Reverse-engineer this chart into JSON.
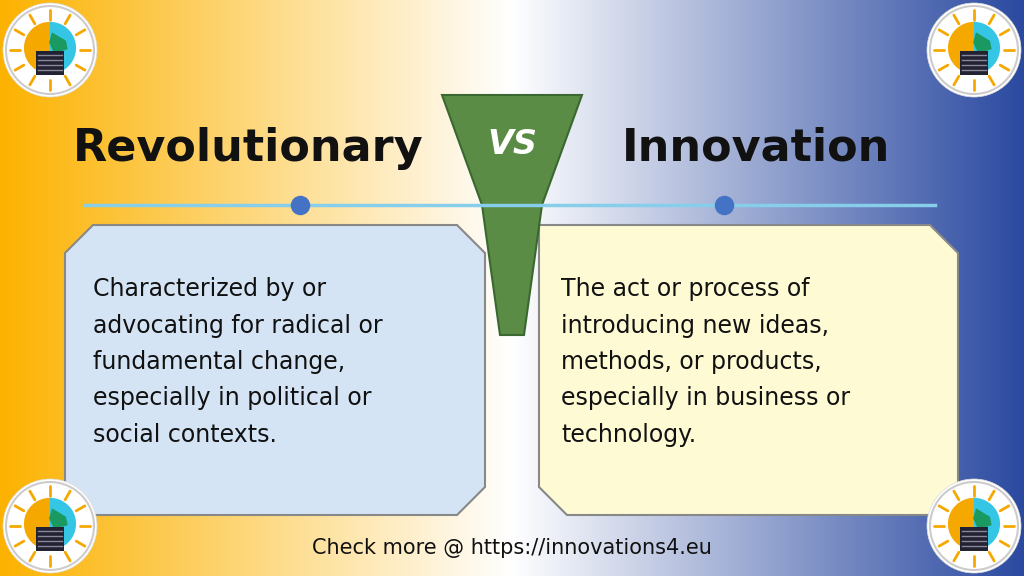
{
  "title_left": "Revolutionary",
  "title_right": "Innovation",
  "vs_text": "VS",
  "desc_left": "Characterized by or\nadvocating for radical or\nfundamental change,\nespecially in political or\nsocial contexts.",
  "desc_right": "The act or process of\nintroducing new ideas,\nmethods, or products,\nespecially in business or\ntechnology.",
  "footer": "Check more @ https://innovations4.eu",
  "bg_yellow": [
    0.988,
    0.698,
    0.0
  ],
  "bg_blue": [
    0.165,
    0.286,
    0.627
  ],
  "bg_white": [
    1.0,
    1.0,
    1.0
  ],
  "box_left_color": "#D4E4F5",
  "box_right_color": "#FEFAD4",
  "box_left_border": "#888888",
  "box_right_border": "#888888",
  "vs_color_top": "#5A8040",
  "vs_color_bottom": "#3A6020",
  "line_color": "#87CEEB",
  "dot_color": "#4472C4",
  "title_fontsize": 32,
  "vs_fontsize": 24,
  "desc_fontsize": 17,
  "footer_fontsize": 15
}
